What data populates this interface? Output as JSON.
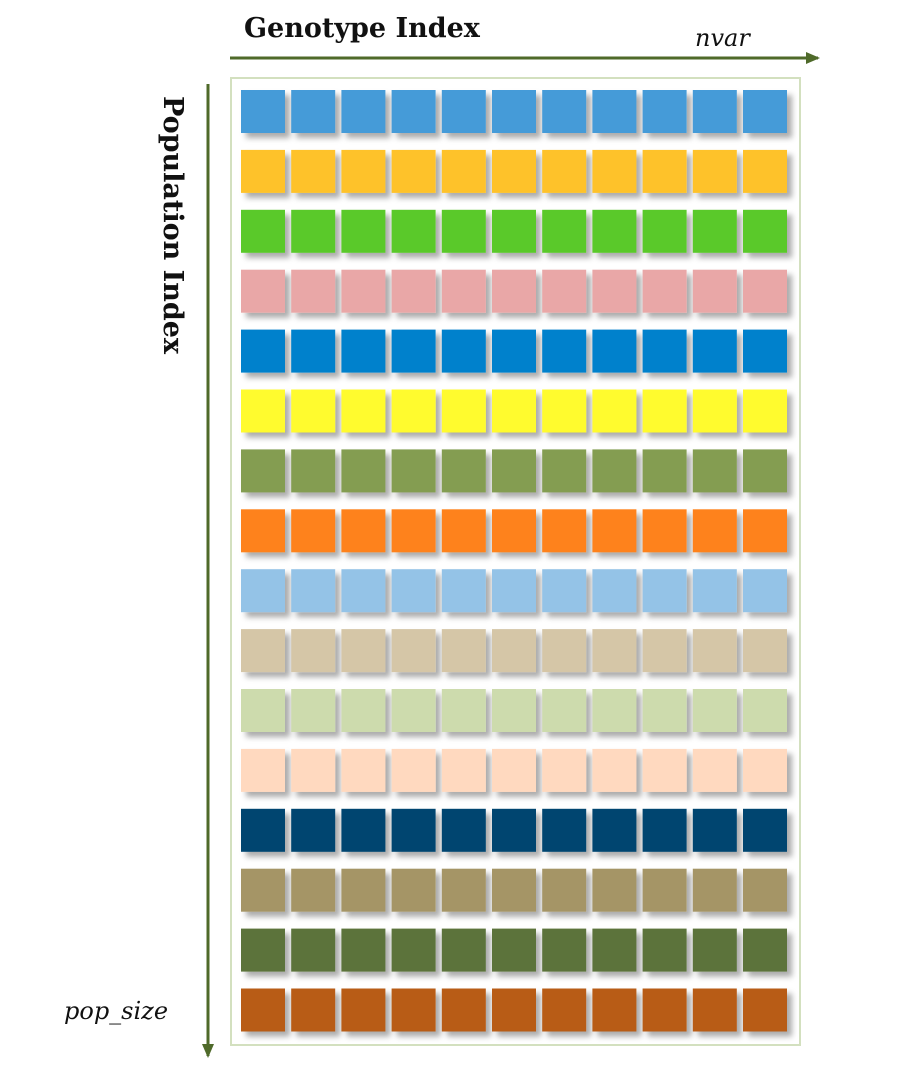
{
  "header": {
    "genotype_label": "Genotype Index",
    "nvar_label": "nvar"
  },
  "side": {
    "population_label": "Population Index",
    "pop_size_label": "pop_size"
  },
  "colors": {
    "arrow": "#4f6a2a",
    "frame_border": "#d3e0bf",
    "rows": [
      "#449bd8",
      "#fec22a",
      "#5ac92c",
      "#e9a7a7",
      "#0481cc",
      "#fffb2d",
      "#849d51",
      "#fe821a",
      "#94c3e7",
      "#d5c6a7",
      "#cddbad",
      "#ffd9bf",
      "#03446f",
      "#a59566",
      "#5b733a",
      "#b85c14"
    ]
  },
  "grid": {
    "rows": 16,
    "cols": 11
  }
}
